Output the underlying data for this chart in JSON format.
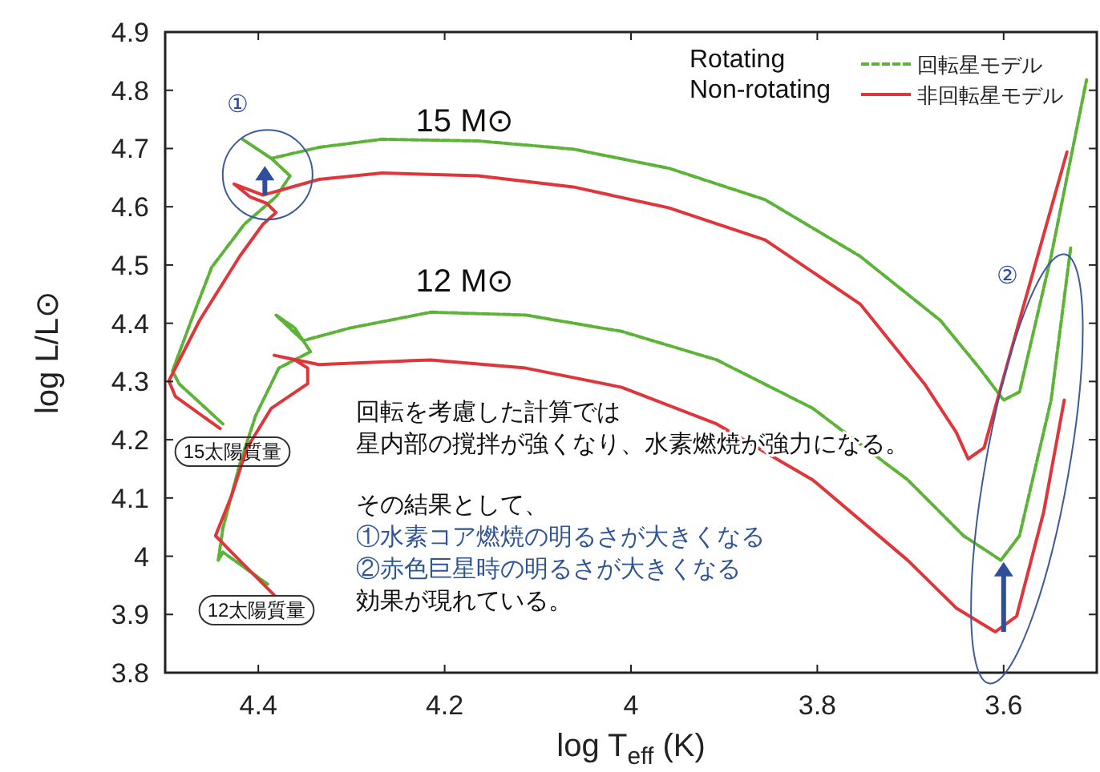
{
  "chart_data": {
    "type": "line",
    "xlabel": "log T$_{eff}$ (K)",
    "ylabel": "log L/L⊙",
    "xlim": [
      4.5,
      3.5
    ],
    "ylim": [
      3.8,
      4.9
    ],
    "xticks": [
      4.4,
      4.2,
      4,
      3.8,
      3.6
    ],
    "yticks": [
      3.8,
      3.9,
      4,
      4.1,
      4.2,
      4.3,
      4.4,
      4.5,
      4.6,
      4.7,
      4.8,
      4.9
    ],
    "grid": false,
    "legend": "top right",
    "marker": "none",
    "series": [
      {
        "name": "回転星モデル",
        "color": "#5cb338",
        "line_style": "dashed",
        "x": [
          4.438,
          4.485,
          4.492,
          4.472,
          4.45,
          4.415,
          4.381,
          4.366,
          4.386,
          4.417,
          4.386,
          4.335,
          4.267,
          4.164,
          4.062,
          3.959,
          3.856,
          3.754,
          3.668,
          3.626,
          3.6,
          3.583,
          3.549,
          3.511
        ],
        "values": [
          4.227,
          4.296,
          4.318,
          4.405,
          4.496,
          4.57,
          4.617,
          4.653,
          4.683,
          4.716,
          4.683,
          4.702,
          4.716,
          4.713,
          4.699,
          4.666,
          4.612,
          4.515,
          4.405,
          4.323,
          4.268,
          4.282,
          4.515,
          4.818
        ]
      },
      {
        "name": "非回転星モデル",
        "color": "#e0353a",
        "x": [
          4.441,
          4.489,
          4.496,
          4.463,
          4.42,
          4.395,
          4.381,
          4.391,
          4.409,
          4.426,
          4.395,
          4.335,
          4.267,
          4.164,
          4.062,
          3.959,
          3.856,
          3.754,
          3.685,
          3.651,
          3.638,
          3.621,
          3.583,
          3.532
        ],
        "values": [
          4.219,
          4.274,
          4.301,
          4.405,
          4.515,
          4.57,
          4.59,
          4.606,
          4.617,
          4.639,
          4.62,
          4.647,
          4.658,
          4.653,
          4.634,
          4.598,
          4.543,
          4.433,
          4.296,
          4.213,
          4.167,
          4.186,
          4.405,
          4.694
        ]
      },
      {
        "color": "#5cb338",
        "line_style": "dashed",
        "x": [
          4.39,
          4.438,
          4.443,
          4.438,
          4.42,
          4.403,
          4.378,
          4.344,
          4.361,
          4.381,
          4.352,
          4.301,
          4.215,
          4.113,
          4.01,
          3.908,
          3.805,
          3.703,
          3.643,
          3.603,
          3.583,
          3.549,
          3.528
        ],
        "values": [
          3.952,
          4.007,
          3.993,
          4.048,
          4.158,
          4.241,
          4.323,
          4.351,
          4.392,
          4.414,
          4.37,
          4.392,
          4.419,
          4.414,
          4.386,
          4.337,
          4.254,
          4.131,
          4.035,
          3.993,
          4.035,
          4.268,
          4.529
        ]
      },
      {
        "color": "#e0353a",
        "x": [
          4.383,
          4.429,
          4.446,
          4.429,
          4.412,
          4.386,
          4.347,
          4.347,
          4.361,
          4.383,
          4.335,
          4.215,
          4.113,
          4.01,
          3.908,
          3.805,
          3.703,
          3.651,
          3.609,
          3.586,
          3.557,
          3.535
        ],
        "values": [
          3.933,
          4.007,
          4.035,
          4.103,
          4.186,
          4.254,
          4.296,
          4.323,
          4.337,
          4.345,
          4.329,
          4.337,
          4.323,
          4.29,
          4.227,
          4.131,
          3.993,
          3.911,
          3.87,
          3.897,
          4.076,
          4.268
        ]
      }
    ],
    "annotations": [
      "15 M⊙",
      "12 M⊙",
      "①",
      "②",
      "15太陽質量",
      "12太陽質量",
      "Rotating",
      "Non-rotating",
      "回転を考慮した計算では",
      "星内部の撹拌が強くなり、水素燃焼が強力になる。",
      "その結果として、",
      "①水素コア燃焼の明るさが大きくなる",
      "②赤色巨星時の明るさが大きくなる",
      "効果が現れている。"
    ]
  }
}
